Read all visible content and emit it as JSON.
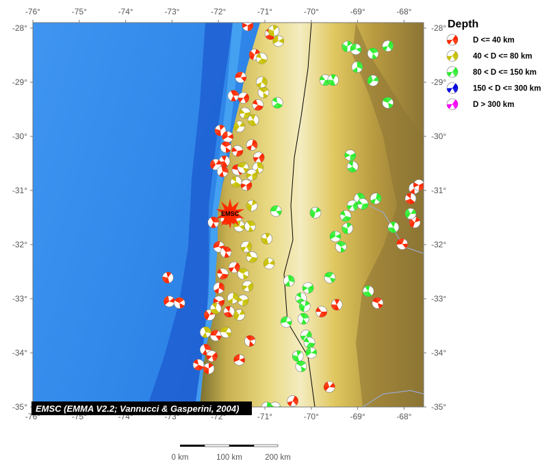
{
  "map": {
    "extent": {
      "lon": [
        -76,
        -67.57
      ],
      "lat": [
        -35.0,
        -27.9
      ]
    },
    "lon_ticks": [
      "-76°",
      "-75°",
      "-74°",
      "-73°",
      "-72°",
      "-71°",
      "-70°",
      "-69°",
      "-68°"
    ],
    "lat_ticks": [
      "-28°",
      "-29°",
      "-30°",
      "-31°",
      "-32°",
      "-33°",
      "-34°",
      "-35°"
    ],
    "attribution": "EMSC (EMMA V2.2; Vannucci & Gasperini, 2004)",
    "marker": {
      "label": "EMSC",
      "lon": -71.75,
      "lat": -31.43,
      "color": "#ff2a00"
    },
    "colors": {
      "ocean": "#2f86e8",
      "trench": "#1848c8",
      "land_low": "#8a7a3a",
      "land_high": "#e8d070",
      "border": "#000000"
    }
  },
  "legend": {
    "title": "Depth",
    "items": [
      {
        "label": "D <= 40 km",
        "color": "#ff2a00"
      },
      {
        "label": "40 < D <= 80 km",
        "color": "#c8c000"
      },
      {
        "label": "80 < D <= 150 km",
        "color": "#30ee30"
      },
      {
        "label": "150 < D <= 300 km",
        "color": "#0000e0"
      },
      {
        "label": "D > 300 km",
        "color": "#ff00ff"
      }
    ]
  },
  "scale_bar": {
    "labels": [
      "0 km",
      "100 km",
      "200 km"
    ]
  },
  "events": [
    [
      -71.37,
      -27.95,
      0
    ],
    [
      -70.88,
      -28.11,
      0
    ],
    [
      -71.22,
      -28.49,
      0
    ],
    [
      -71.52,
      -28.91,
      0
    ],
    [
      -71.68,
      -29.25,
      0
    ],
    [
      -71.46,
      -29.29,
      0
    ],
    [
      -71.15,
      -29.42,
      0
    ],
    [
      -71.96,
      -29.89,
      0
    ],
    [
      -71.8,
      -30.01,
      0
    ],
    [
      -71.84,
      -30.2,
      0
    ],
    [
      -71.28,
      -30.16,
      0
    ],
    [
      -71.59,
      -30.27,
      0
    ],
    [
      -71.87,
      -30.46,
      0
    ],
    [
      -72.06,
      -30.52,
      0
    ],
    [
      -71.59,
      -30.62,
      0
    ],
    [
      -71.91,
      -30.65,
      0
    ],
    [
      -71.4,
      -30.9,
      0
    ],
    [
      -71.84,
      -31.53,
      0
    ],
    [
      -71.62,
      -31.53,
      0
    ],
    [
      -71.99,
      -32.04,
      0
    ],
    [
      -71.84,
      -32.14,
      0
    ],
    [
      -71.66,
      -32.42,
      0
    ],
    [
      -71.91,
      -32.54,
      0
    ],
    [
      -73.09,
      -32.61,
      0
    ],
    [
      -73.06,
      -33.05,
      0
    ],
    [
      -72.84,
      -33.08,
      0
    ],
    [
      -71.99,
      -32.8,
      0
    ],
    [
      -71.99,
      -33.05,
      0
    ],
    [
      -71.77,
      -33.24,
      0
    ],
    [
      -72.19,
      -33.3,
      0
    ],
    [
      -72.06,
      -33.68,
      0
    ],
    [
      -72.28,
      -33.94,
      0
    ],
    [
      -72.14,
      -34.06,
      0
    ],
    [
      -72.43,
      -34.22,
      0
    ],
    [
      -72.21,
      -34.29,
      0
    ],
    [
      -71.55,
      -34.13,
      0
    ],
    [
      -71.32,
      -33.78,
      0
    ],
    [
      -70.4,
      -34.89,
      0
    ],
    [
      -69.78,
      -33.24,
      0
    ],
    [
      -69.45,
      -33.11,
      0
    ],
    [
      -69.61,
      -34.63,
      0
    ],
    [
      -68.57,
      -33.08,
      0
    ],
    [
      -67.78,
      -30.96,
      0
    ],
    [
      -67.68,
      -30.9,
      0
    ],
    [
      -67.86,
      -31.15,
      0
    ],
    [
      -67.77,
      -31.59,
      0
    ],
    [
      -68.04,
      -31.99,
      0
    ],
    [
      -72.11,
      -31.59,
      0
    ],
    [
      -71.13,
      -30.39,
      0
    ],
    [
      -71.07,
      -28.56,
      1
    ],
    [
      -70.81,
      -28.05,
      1
    ],
    [
      -70.71,
      -28.24,
      1
    ],
    [
      -71.03,
      -29.19,
      1
    ],
    [
      -71.07,
      -29.0,
      1
    ],
    [
      -71.43,
      -29.57,
      1
    ],
    [
      -71.25,
      -29.7,
      1
    ],
    [
      -71.55,
      -29.82,
      1
    ],
    [
      -71.47,
      -30.58,
      1
    ],
    [
      -71.15,
      -30.58,
      1
    ],
    [
      -71.28,
      -30.71,
      1
    ],
    [
      -71.62,
      -30.84,
      1
    ],
    [
      -71.28,
      -31.28,
      1
    ],
    [
      -71.55,
      -31.66,
      1
    ],
    [
      -71.32,
      -31.66,
      1
    ],
    [
      -71.4,
      -32.04,
      1
    ],
    [
      -71.28,
      -32.23,
      1
    ],
    [
      -70.96,
      -31.89,
      1
    ],
    [
      -70.91,
      -32.35,
      1
    ],
    [
      -71.47,
      -32.54,
      1
    ],
    [
      -71.69,
      -32.99,
      1
    ],
    [
      -71.47,
      -33.03,
      1
    ],
    [
      -72.06,
      -33.18,
      1
    ],
    [
      -71.55,
      -33.3,
      1
    ],
    [
      -71.84,
      -33.62,
      1
    ],
    [
      -72.28,
      -33.62,
      1
    ],
    [
      -71.37,
      -32.77,
      1
    ],
    [
      -70.73,
      -29.38,
      2
    ],
    [
      -69.22,
      -28.34,
      2
    ],
    [
      -69.04,
      -28.39,
      2
    ],
    [
      -68.67,
      -28.47,
      2
    ],
    [
      -68.35,
      -28.33,
      2
    ],
    [
      -69.7,
      -28.96,
      2
    ],
    [
      -69.53,
      -28.96,
      2
    ],
    [
      -68.67,
      -28.97,
      2
    ],
    [
      -68.35,
      -29.38,
      2
    ],
    [
      -69.01,
      -28.72,
      2
    ],
    [
      -69.16,
      -30.35,
      2
    ],
    [
      -69.11,
      -30.56,
      2
    ],
    [
      -69.91,
      -31.41,
      2
    ],
    [
      -70.76,
      -31.38,
      2
    ],
    [
      -68.96,
      -31.15,
      2
    ],
    [
      -69.11,
      -31.28,
      2
    ],
    [
      -69.26,
      -31.47,
      2
    ],
    [
      -69.22,
      -31.7,
      2
    ],
    [
      -69.48,
      -31.85,
      2
    ],
    [
      -69.36,
      -32.04,
      2
    ],
    [
      -68.61,
      -31.15,
      2
    ],
    [
      -68.89,
      -31.25,
      2
    ],
    [
      -68.23,
      -31.68,
      2
    ],
    [
      -67.86,
      -31.43,
      2
    ],
    [
      -69.6,
      -32.61,
      2
    ],
    [
      -70.48,
      -32.67,
      2
    ],
    [
      -70.07,
      -32.8,
      2
    ],
    [
      -70.22,
      -32.99,
      2
    ],
    [
      -70.14,
      -33.14,
      2
    ],
    [
      -70.54,
      -33.43,
      2
    ],
    [
      -70.17,
      -33.37,
      2
    ],
    [
      -70.11,
      -33.68,
      2
    ],
    [
      -70.04,
      -33.81,
      2
    ],
    [
      -70.29,
      -34.06,
      2
    ],
    [
      -70.0,
      -34.0,
      2
    ],
    [
      -70.22,
      -34.25,
      2
    ],
    [
      -70.96,
      -35.01,
      2
    ],
    [
      -70.78,
      -35.01,
      2
    ],
    [
      -68.77,
      -32.86,
      2
    ]
  ]
}
